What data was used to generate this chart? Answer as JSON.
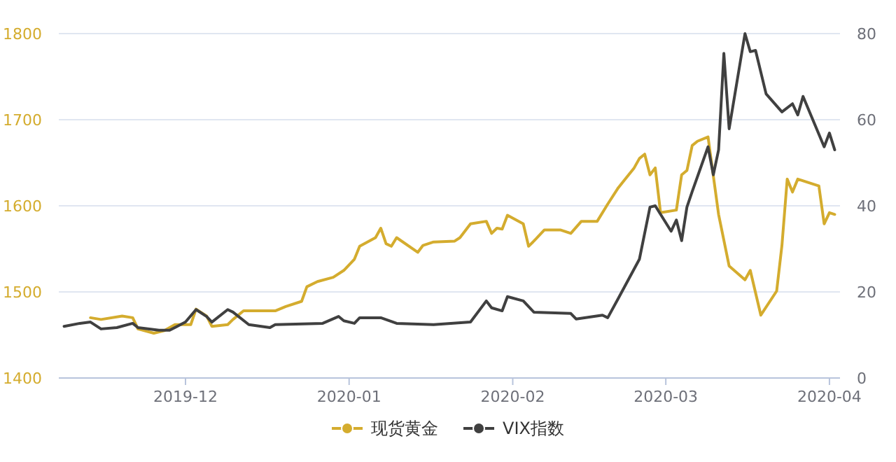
{
  "chart_data": {
    "type": "line",
    "xlim": [
      "2019-11-07",
      "2020-04-03"
    ],
    "xticks": [
      "2019-12",
      "2020-01",
      "2020-02",
      "2020-03",
      "2020-04"
    ],
    "ylim": [
      1400,
      1800
    ],
    "yticks": [
      1400,
      1500,
      1600,
      1700,
      1800
    ],
    "y2lim": [
      0,
      80
    ],
    "y2ticks": [
      0,
      20,
      40,
      60,
      80
    ],
    "grid": "y",
    "legend": "bottom",
    "line_style": "solid",
    "series": [
      {
        "name": "现货黄金",
        "color": "#d4ac2e",
        "x": [
          "2019-11-13",
          "2019-11-15",
          "2019-11-19",
          "2019-11-21",
          "2019-11-22",
          "2019-11-25",
          "2019-11-27",
          "2019-11-29",
          "2019-12-02",
          "2019-12-03",
          "2019-12-05",
          "2019-12-06",
          "2019-12-09",
          "2019-12-10",
          "2019-12-12",
          "2019-12-18",
          "2019-12-20",
          "2019-12-23",
          "2019-12-24",
          "2019-12-26",
          "2019-12-29",
          "2019-12-31",
          "2020-01-02",
          "2020-01-03",
          "2020-01-06",
          "2020-01-07",
          "2020-01-08",
          "2020-01-09",
          "2020-01-10",
          "2020-01-14",
          "2020-01-15",
          "2020-01-17",
          "2020-01-21",
          "2020-01-22",
          "2020-01-24",
          "2020-01-27",
          "2020-01-28",
          "2020-01-29",
          "2020-01-30",
          "2020-01-31",
          "2020-02-03",
          "2020-02-04",
          "2020-02-05",
          "2020-02-07",
          "2020-02-10",
          "2020-02-12",
          "2020-02-14",
          "2020-02-17",
          "2020-02-19",
          "2020-02-21",
          "2020-02-24",
          "2020-02-25",
          "2020-02-26",
          "2020-02-27",
          "2020-02-28",
          "2020-02-29",
          "2020-03-03",
          "2020-03-04",
          "2020-03-05",
          "2020-03-06",
          "2020-03-07",
          "2020-03-09",
          "2020-03-11",
          "2020-03-13",
          "2020-03-16",
          "2020-03-17",
          "2020-03-19",
          "2020-03-22",
          "2020-03-23",
          "2020-03-24",
          "2020-03-25",
          "2020-03-26",
          "2020-03-30",
          "2020-03-31",
          "2020-04-01",
          "2020-04-02"
        ],
        "values": [
          1470,
          1468,
          1472,
          1470,
          1457,
          1452,
          1455,
          1462,
          1462,
          1480,
          1472,
          1460,
          1462,
          1468,
          1478,
          1478,
          1483,
          1489,
          1506,
          1512,
          1517,
          1525,
          1538,
          1553,
          1563,
          1574,
          1556,
          1553,
          1563,
          1546,
          1554,
          1558,
          1559,
          1563,
          1579,
          1582,
          1568,
          1574,
          1573,
          1589,
          1579,
          1553,
          1559,
          1572,
          1572,
          1568,
          1582,
          1582,
          1602,
          1621,
          1644,
          1655,
          1660,
          1636,
          1644,
          1592,
          1595,
          1636,
          1641,
          1670,
          1675,
          1680,
          1590,
          1530,
          1514,
          1525,
          1473,
          1501,
          1554,
          1631,
          1616,
          1631,
          1623,
          1579,
          1592,
          1590
        ]
      },
      {
        "name": "VIX指数",
        "color": "#404040",
        "axis": "y2",
        "x": [
          "2019-11-08",
          "2019-11-11",
          "2019-11-13",
          "2019-11-15",
          "2019-11-18",
          "2019-11-21",
          "2019-11-22",
          "2019-11-26",
          "2019-11-28",
          "2019-12-01",
          "2019-12-03",
          "2019-12-05",
          "2019-12-06",
          "2019-12-09",
          "2019-12-10",
          "2019-12-13",
          "2019-12-17",
          "2019-12-18",
          "2019-12-27",
          "2019-12-30",
          "2019-12-31",
          "2020-01-02",
          "2020-01-03",
          "2020-01-07",
          "2020-01-10",
          "2020-01-17",
          "2020-01-24",
          "2020-01-27",
          "2020-01-28",
          "2020-01-30",
          "2020-01-31",
          "2020-02-03",
          "2020-02-05",
          "2020-02-12",
          "2020-02-13",
          "2020-02-18",
          "2020-02-19",
          "2020-02-21",
          "2020-02-25",
          "2020-02-27",
          "2020-02-28",
          "2020-03-02",
          "2020-03-03",
          "2020-03-04",
          "2020-03-05",
          "2020-03-06",
          "2020-03-09",
          "2020-03-10",
          "2020-03-11",
          "2020-03-12",
          "2020-03-13",
          "2020-03-16",
          "2020-03-17",
          "2020-03-18",
          "2020-03-20",
          "2020-03-23",
          "2020-03-25",
          "2020-03-26",
          "2020-03-27",
          "2020-03-31",
          "2020-04-01",
          "2020-04-02"
        ],
        "values": [
          12.0,
          12.7,
          13.0,
          11.4,
          11.7,
          12.7,
          11.7,
          11.1,
          11.1,
          13.0,
          15.9,
          14.3,
          13.0,
          15.9,
          15.3,
          12.4,
          11.7,
          12.4,
          12.7,
          14.3,
          13.3,
          12.7,
          14.0,
          14.0,
          12.7,
          12.4,
          13.0,
          17.9,
          16.3,
          15.6,
          18.9,
          17.9,
          15.3,
          15.0,
          13.7,
          14.6,
          14.0,
          18.5,
          27.6,
          39.7,
          40.0,
          34.1,
          36.7,
          31.9,
          39.7,
          43.3,
          53.7,
          47.2,
          53.0,
          75.4,
          57.9,
          80.0,
          75.8,
          76.1,
          66.0,
          61.8,
          63.7,
          61.1,
          65.4,
          53.7,
          56.9,
          53.0
        ]
      }
    ]
  }
}
